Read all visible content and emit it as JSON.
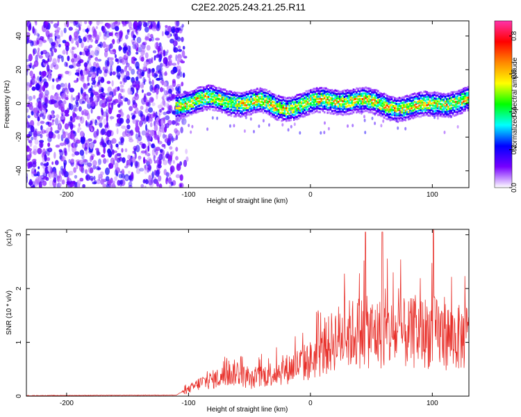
{
  "title": "C2E2.2025.243.21.25.R11",
  "chart_data": [
    {
      "type": "heatmap",
      "name": "spectrogram",
      "xlabel": "Height of straight line (km)",
      "ylabel": "Frequency (Hz)",
      "xlim": [
        -233,
        130
      ],
      "ylim": [
        -50,
        49
      ],
      "xticks": [
        -200,
        -100,
        0,
        100
      ],
      "yticks": [
        -40,
        -20,
        0,
        20,
        40
      ],
      "colorbar": {
        "label": "Normalized spectral amplitude",
        "range": [
          0,
          0.88
        ],
        "ticks": [
          0.0,
          0.2,
          0.4,
          0.6,
          0.8
        ],
        "colors": [
          "#ffffff",
          "#7700ff",
          "#0000ff",
          "#00ffff",
          "#00ff00",
          "#ffff00",
          "#ff8800",
          "#ff0000",
          "#ff33aa"
        ]
      },
      "regions": [
        {
          "x_range": [
            -233,
            -110
          ],
          "description": "noise",
          "amplitude": [
            0.0,
            0.2
          ]
        },
        {
          "x_range": [
            -110,
            130
          ],
          "center_freq_hz": 0,
          "band_halfwidth_hz": 7,
          "amplitude": [
            0.2,
            0.75
          ]
        }
      ]
    },
    {
      "type": "line",
      "name": "snr",
      "xlabel": "Height of straight line (km)",
      "ylabel": "SNR (10 * v/v)",
      "y_multiplier": "(x10",
      "y_multiplier_exp": "4",
      "y_multiplier_close": ")",
      "xlim": [
        -233,
        130
      ],
      "ylim": [
        0,
        3.1
      ],
      "xticks": [
        -200,
        -100,
        0,
        100
      ],
      "yticks": [
        0,
        1,
        2,
        3
      ],
      "color": "#e8302a",
      "envelope": [
        {
          "x": -233,
          "y": 0.01
        },
        {
          "x": -110,
          "y": 0.02
        },
        {
          "x": -100,
          "y": 0.15
        },
        {
          "x": -90,
          "y": 0.3
        },
        {
          "x": -70,
          "y": 0.45
        },
        {
          "x": -60,
          "y": 0.55
        },
        {
          "x": -50,
          "y": 0.35
        },
        {
          "x": -40,
          "y": 0.45
        },
        {
          "x": -20,
          "y": 0.6
        },
        {
          "x": 0,
          "y": 0.8
        },
        {
          "x": 10,
          "y": 1.0
        },
        {
          "x": 20,
          "y": 1.3
        },
        {
          "x": 40,
          "y": 1.45
        },
        {
          "x": 60,
          "y": 1.4
        },
        {
          "x": 80,
          "y": 1.4
        },
        {
          "x": 100,
          "y": 1.45
        },
        {
          "x": 120,
          "y": 1.3
        },
        {
          "x": 130,
          "y": 1.35
        }
      ],
      "peaks": [
        {
          "x": 45,
          "y": 3.05
        },
        {
          "x": 59,
          "y": 3.05
        },
        {
          "x": 101,
          "y": 3.1
        }
      ]
    }
  ]
}
